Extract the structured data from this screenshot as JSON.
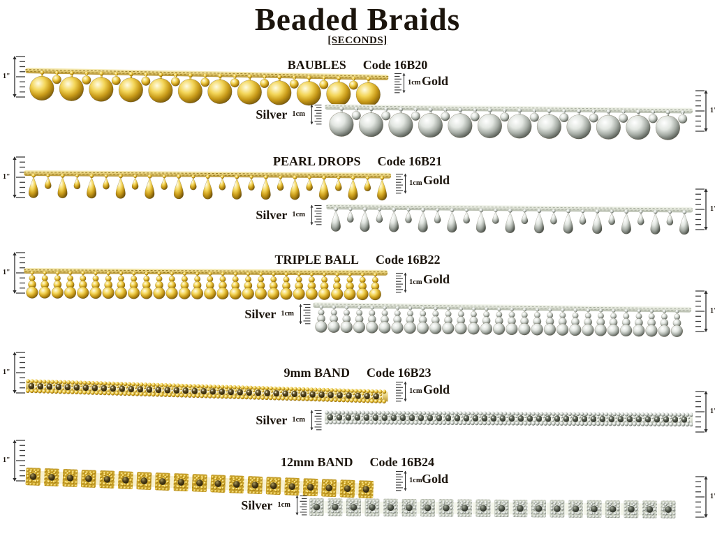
{
  "page": {
    "title": "Beaded Braids",
    "subtitle": "[SECONDS]",
    "inch_label": "1\"",
    "cm_label": "1cm"
  },
  "sections": [
    {
      "name": "BAUBLES",
      "code": "Code 16B20",
      "style": "baubles",
      "gold_label": "Gold",
      "silver_label": "Silver"
    },
    {
      "name": "PEARL DROPS",
      "code": "Code 16B21",
      "style": "drops",
      "gold_label": "Gold",
      "silver_label": "Silver"
    },
    {
      "name": "TRIPLE BALL",
      "code": "Code 16B22",
      "style": "triple",
      "gold_label": "Gold",
      "silver_label": "Silver"
    },
    {
      "name": "9mm BAND",
      "code": "Code 16B23",
      "style": "band9",
      "gold_label": "Gold",
      "silver_label": "Silver"
    },
    {
      "name": "12mm BAND",
      "code": "Code 16B24",
      "style": "band12",
      "gold_label": "Gold",
      "silver_label": "Silver"
    }
  ],
  "colors": {
    "background": "#ffffff",
    "text": "#1b140c",
    "ruler": "#2e2e2e",
    "gold": {
      "ball": [
        "#fffce4",
        "#f3d558",
        "#c89a18",
        "#79590a"
      ],
      "dark_bead": [
        "#a89a5e",
        "#53431c",
        "#201806"
      ],
      "cord_hi": "#f9f0c0",
      "cord_mid": "#e6cf78",
      "cord_lo": "#b69434",
      "cord_shadow": "#9a7d22",
      "tile": "#c8a22d",
      "gap": "#f7f0cf"
    },
    "silver": {
      "ball": [
        "#ffffff",
        "#e2e6e1",
        "#a6aca5",
        "#51564f"
      ],
      "dark_bead": [
        "#aab0a2",
        "#555b4f",
        "#22251f"
      ],
      "cord_hi": "#f6f8f0",
      "cord_mid": "#e0e4d8",
      "cord_lo": "#b4baab",
      "cord_shadow": "#a7ad9e",
      "tile": "#cdd2c5",
      "gap": "#f4f6eb"
    }
  }
}
